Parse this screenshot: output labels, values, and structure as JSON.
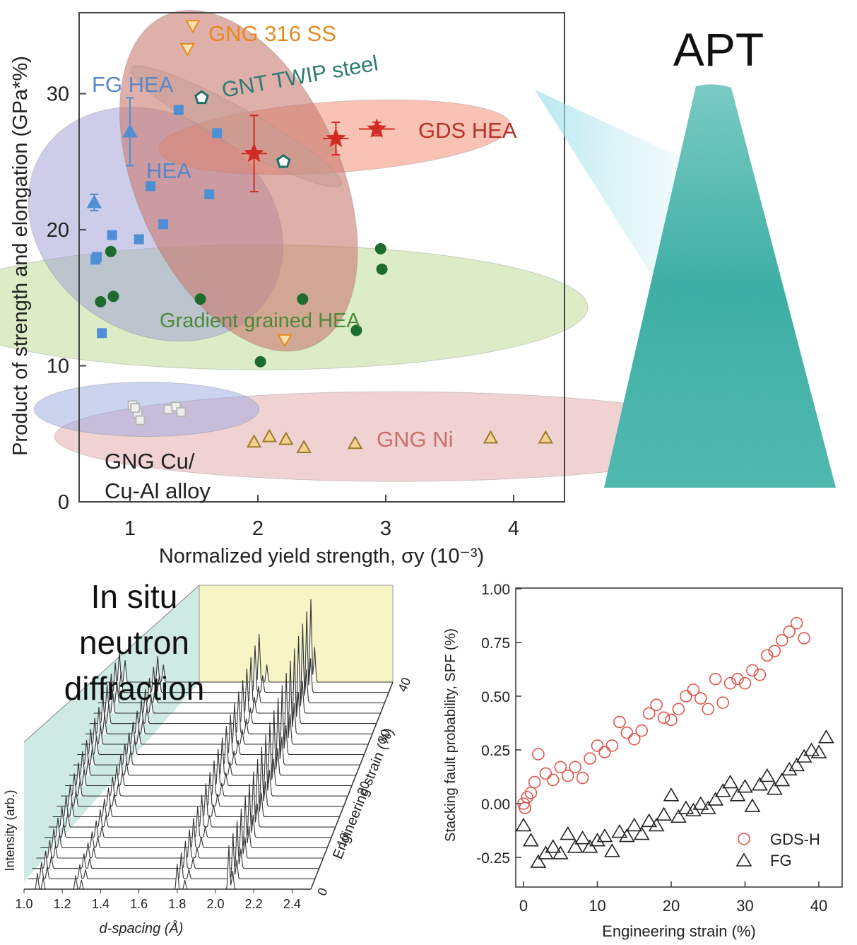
{
  "colors": {
    "hea_blue": "#4f8fd4",
    "green": "#1e6b2e",
    "star_red": "#d42a24",
    "orange": "#e58a22",
    "teal_pent": "#1f6f6a",
    "triangle_brown": "#9a7b2c",
    "apt_teal": "#2aa8a0",
    "gds_red": "#e0554b",
    "fg_black": "#222222"
  },
  "apt_label": "APT",
  "neutron_label": [
    "In situ",
    "neutron",
    "diffraction"
  ],
  "chart_data": [
    {
      "type": "scatter",
      "title": "",
      "xlabel": "Normalized yield strength, σy (10⁻³)",
      "ylabel": "Product of strength and elongation (GPa*%)",
      "xlim": [
        0.62,
        4.5
      ],
      "ylim": [
        0,
        36
      ],
      "xticks": [
        "1",
        "2",
        "3",
        "4"
      ],
      "yticks": [
        "0",
        "10",
        "20",
        "30"
      ],
      "annotations": [
        "GNG 316 SS",
        "GNT TWIP steel",
        "FG HEA",
        "HEA",
        "GDS HEA",
        "Gradient grained HEA",
        "GNG Ni",
        "GNG Cu/",
        "Cu-Al alloy"
      ],
      "series": [
        {
          "name": "HEA",
          "marker": "square",
          "color": "#4f8fd4",
          "x": [
            1.38,
            0.74,
            0.86,
            1.07,
            1.16,
            1.26,
            1.62,
            1.68,
            0.78,
            0.73
          ],
          "y": [
            28.8,
            18.0,
            19.6,
            19.3,
            23.2,
            20.4,
            22.6,
            27.1,
            12.4,
            17.8
          ]
        },
        {
          "name": "FG HEA",
          "marker": "triangle-up",
          "color": "#4f8fd4",
          "x": [
            1.0,
            0.72
          ],
          "y": [
            27.2,
            22.0
          ],
          "yerr": [
            2.5,
            0.6
          ]
        },
        {
          "name": "Gradient grained HEA",
          "marker": "circle",
          "color": "#1e6b2e",
          "x": [
            0.85,
            0.77,
            0.87,
            1.55,
            2.02,
            2.35,
            2.77,
            2.96,
            2.97
          ],
          "y": [
            18.4,
            14.7,
            15.1,
            14.9,
            10.3,
            14.9,
            12.6,
            18.6,
            17.1
          ]
        },
        {
          "name": "GDS HEA",
          "marker": "star",
          "color": "#d42a24",
          "x": [
            1.97,
            2.61,
            2.93
          ],
          "y": [
            25.6,
            26.7,
            27.4
          ],
          "yerr": [
            2.8,
            1.2,
            0.5
          ],
          "xerr": [
            0.1,
            0.1,
            0.14
          ]
        },
        {
          "name": "GNG 316 SS",
          "marker": "triangle-down",
          "color": "#e58a22",
          "x": [
            1.49,
            1.45,
            2.21
          ],
          "y": [
            35.0,
            33.3,
            11.9
          ]
        },
        {
          "name": "GNT TWIP steel",
          "marker": "pentagon",
          "color": "#1f6f6a",
          "x": [
            1.56,
            2.2
          ],
          "y": [
            29.7,
            25.0
          ]
        },
        {
          "name": "GNG Ni",
          "marker": "triangle-up",
          "color": "#9a7b2c",
          "x": [
            1.97,
            2.09,
            2.22,
            2.36,
            2.76,
            3.82,
            4.25
          ],
          "y": [
            4.4,
            4.8,
            4.6,
            4.0,
            4.3,
            4.7,
            4.7
          ]
        },
        {
          "name": "GNG Cu/Cu-Al alloy",
          "marker": "square-open",
          "color": "#b8b8b8",
          "x": [
            1.02,
            1.06,
            1.08,
            1.3,
            1.36,
            1.4,
            1.04
          ],
          "y": [
            7.1,
            6.5,
            6.0,
            6.8,
            7.0,
            6.6,
            6.9
          ]
        }
      ]
    },
    {
      "type": "line",
      "title": "",
      "xlabel": "d-spacing (Å)",
      "ylabel": "Intensity (arb.)",
      "zlabel": "Engineering strain (%)",
      "xlim": [
        1.0,
        2.5
      ],
      "xticks": [
        "1.0",
        "1.2",
        "1.4",
        "1.6",
        "1.8",
        "2.0",
        "2.2",
        "2.4"
      ],
      "zticks": [
        "0",
        "10",
        "20",
        "30",
        "40"
      ],
      "peak_positions": [
        1.07,
        1.1,
        1.27,
        1.3,
        1.8,
        1.84,
        2.07,
        2.09
      ],
      "strain_levels": [
        0,
        2,
        4,
        6,
        8,
        10,
        12,
        14,
        16,
        18,
        20,
        22,
        24,
        26,
        28,
        30,
        32,
        34,
        36,
        38,
        40
      ]
    },
    {
      "type": "scatter",
      "title": "",
      "xlabel": "Engineering strain (%)",
      "ylabel": "Stacking fault probability, SPF (%)",
      "xlim": [
        -1,
        44
      ],
      "ylim": [
        -0.38,
        1.0
      ],
      "xticks": [
        "0",
        "10",
        "20",
        "30",
        "40"
      ],
      "yticks": [
        "-0.25",
        "0.00",
        "0.25",
        "0.50",
        "0.75",
        "1.00"
      ],
      "legend": "bottom-right",
      "series": [
        {
          "name": "GDS-H",
          "marker": "circle-open",
          "color": "#e0554b",
          "x": [
            0,
            0.2,
            0.5,
            1,
            1.5,
            2,
            3,
            4,
            5,
            6,
            7,
            8,
            9,
            10,
            11,
            12,
            13,
            14,
            15,
            16,
            17,
            18,
            19,
            20,
            21,
            22,
            23,
            24,
            25,
            26,
            27,
            28,
            29,
            30,
            31,
            32,
            33,
            34,
            35,
            36,
            37,
            38
          ],
          "y": [
            0.0,
            -0.02,
            0.03,
            0.05,
            0.1,
            0.23,
            0.14,
            0.11,
            0.17,
            0.13,
            0.17,
            0.12,
            0.21,
            0.27,
            0.24,
            0.27,
            0.38,
            0.33,
            0.3,
            0.34,
            0.42,
            0.46,
            0.4,
            0.39,
            0.44,
            0.5,
            0.53,
            0.49,
            0.44,
            0.58,
            0.47,
            0.56,
            0.58,
            0.56,
            0.62,
            0.6,
            0.69,
            0.71,
            0.76,
            0.8,
            0.84,
            0.77
          ]
        },
        {
          "name": "FG",
          "marker": "triangle-open",
          "color": "#222222",
          "x": [
            0,
            1,
            2,
            3,
            4,
            5,
            6,
            7,
            8,
            9,
            10,
            11,
            12,
            13,
            14,
            15,
            16,
            17,
            18,
            19,
            20,
            21,
            22,
            23,
            24,
            25,
            26,
            27,
            28,
            29,
            30,
            31,
            32,
            33,
            34,
            35,
            36,
            37,
            38,
            39,
            40,
            41
          ],
          "y": [
            -0.1,
            -0.17,
            -0.27,
            -0.23,
            -0.2,
            -0.23,
            -0.14,
            -0.2,
            -0.16,
            -0.2,
            -0.17,
            -0.15,
            -0.22,
            -0.13,
            -0.15,
            -0.1,
            -0.14,
            -0.08,
            -0.1,
            -0.05,
            0.04,
            -0.06,
            -0.02,
            -0.03,
            0.0,
            -0.02,
            0.02,
            0.06,
            0.1,
            0.04,
            0.08,
            -0.01,
            0.09,
            0.13,
            0.07,
            0.11,
            0.16,
            0.18,
            0.22,
            0.25,
            0.24,
            0.31
          ]
        }
      ]
    }
  ]
}
